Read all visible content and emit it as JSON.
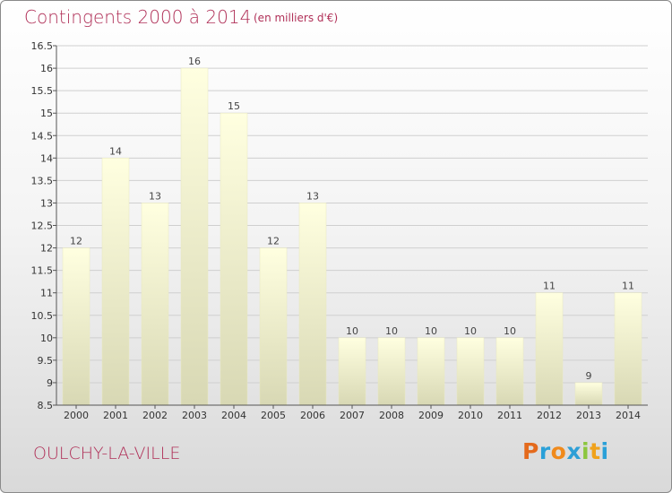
{
  "header": {
    "title": "Contingents 2000 à 2014",
    "subtitle": "(en milliers d'€)"
  },
  "footer": {
    "place": "OULCHY-LA-VILLE",
    "logo_text": "Proxiti",
    "logo_colors": [
      "#e46a1c",
      "#2aa0d8",
      "#f08a1c",
      "#2e9fd6",
      "#8cc63f",
      "#f0a21c",
      "#2aa0d8"
    ]
  },
  "colors": {
    "title": "#b03058",
    "bar_top": "#ffffe0",
    "bar_bottom": "#d8d8b4",
    "bar_edge": "#e8e8c0"
  },
  "chart_data": {
    "type": "bar",
    "title": "Contingents 2000 à 2014",
    "subtitle": "(en milliers d'€)",
    "categories": [
      "2000",
      "2001",
      "2002",
      "2003",
      "2004",
      "2005",
      "2006",
      "2007",
      "2008",
      "2009",
      "2010",
      "2011",
      "2012",
      "2013",
      "2014"
    ],
    "values": [
      12,
      14,
      13,
      16,
      15,
      12,
      13,
      10,
      10,
      10,
      10,
      10,
      11,
      9,
      11
    ],
    "data_labels": [
      "12",
      "14",
      "13",
      "16",
      "15",
      "12",
      "13",
      "10",
      "10",
      "10",
      "10",
      "10",
      "11",
      "9",
      "11"
    ],
    "ylim": [
      8.5,
      16.5
    ],
    "yticks": [
      8.5,
      9,
      9.5,
      10,
      10.5,
      11,
      11.5,
      12,
      12.5,
      13,
      13.5,
      14,
      14.5,
      15,
      15.5,
      16,
      16.5
    ],
    "ytick_labels": [
      "8.5",
      "9",
      "9.5",
      "10",
      "10.5",
      "11",
      "11.5",
      "12",
      "12.5",
      "13",
      "13.5",
      "14",
      "14.5",
      "15",
      "15.5",
      "16",
      "16.5"
    ],
    "grid": true,
    "xlabel": "",
    "ylabel": ""
  }
}
